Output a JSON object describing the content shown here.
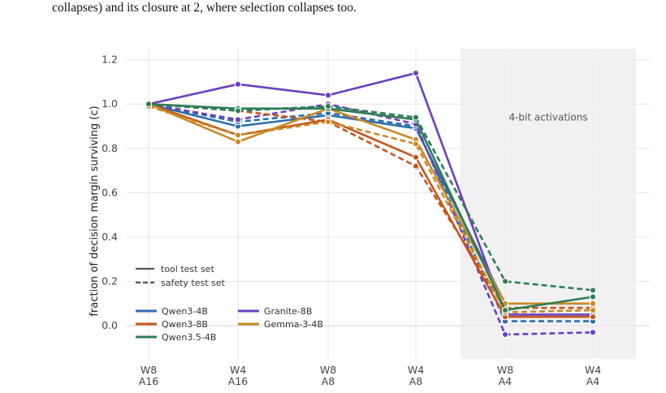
{
  "caption": "collapses) and its closure at 2, where selection collapses too.",
  "chart_data": {
    "type": "line",
    "categories": [
      [
        "W8",
        "A16"
      ],
      [
        "W4",
        "A16"
      ],
      [
        "W8",
        "A8"
      ],
      [
        "W4",
        "A8"
      ],
      [
        "W8",
        "A4"
      ],
      [
        "W4",
        "A4"
      ]
    ],
    "ylabel": "fraction of decision margin surviving (c)",
    "xlabel": "",
    "ylim": [
      -0.15,
      1.25
    ],
    "yticks": [
      0.0,
      0.2,
      0.4,
      0.6,
      0.8,
      1.0,
      1.2
    ],
    "ytick_labels": [
      "0.0",
      "0.2",
      "0.4",
      "0.6",
      "0.8",
      "1.0",
      "1.2"
    ],
    "grid": true,
    "shaded_region": {
      "from_category": 4,
      "to_category": 5,
      "label": "4-bit activations"
    },
    "linestyle_legend": [
      {
        "label": "tool test set",
        "style": "solid"
      },
      {
        "label": "safety test set",
        "style": "dashed"
      }
    ],
    "legend": [
      {
        "name": "Qwen3-4B",
        "color": "#2c6fad"
      },
      {
        "name": "Granite-8B",
        "color": "#6b3fc2"
      },
      {
        "name": "Qwen3-8B",
        "color": "#c4551f"
      },
      {
        "name": "Gemma-3-4B",
        "color": "#c98a25"
      },
      {
        "name": "Qwen3.5-4B",
        "color": "#2f7d57"
      }
    ],
    "legend_position": "lower-left",
    "series": [
      {
        "model": "Qwen3-4B",
        "test_set": "tool",
        "color": "#2c6fad",
        "dashed": false,
        "values": [
          1.0,
          0.9,
          0.95,
          0.89,
          0.1,
          0.1
        ]
      },
      {
        "model": "Qwen3-4B",
        "test_set": "safety",
        "color": "#2c6fad",
        "dashed": true,
        "values": [
          1.0,
          0.92,
          0.96,
          0.9,
          0.02,
          0.02
        ]
      },
      {
        "model": "Granite-8B",
        "test_set": "tool",
        "color": "#6b3fc2",
        "dashed": false,
        "values": [
          1.0,
          1.09,
          1.04,
          1.14,
          0.05,
          0.05
        ]
      },
      {
        "model": "Granite-8B",
        "test_set": "safety",
        "color": "#6b3fc2",
        "dashed": true,
        "values": [
          1.0,
          0.93,
          1.0,
          0.91,
          -0.04,
          -0.03
        ]
      },
      {
        "model": "Qwen3-8B",
        "test_set": "tool",
        "color": "#c4551f",
        "dashed": false,
        "values": [
          1.0,
          0.86,
          0.93,
          0.76,
          0.04,
          0.04
        ]
      },
      {
        "model": "Qwen3-8B",
        "test_set": "safety",
        "color": "#c4551f",
        "dashed": true,
        "values": [
          1.0,
          0.97,
          0.92,
          0.72,
          0.08,
          0.08
        ]
      },
      {
        "model": "Gemma-3-4B",
        "test_set": "tool",
        "color": "#c98a25",
        "dashed": false,
        "values": [
          1.0,
          0.83,
          0.98,
          0.84,
          0.1,
          0.1
        ]
      },
      {
        "model": "Gemma-3-4B",
        "test_set": "safety",
        "color": "#c98a25",
        "dashed": true,
        "values": [
          0.99,
          0.86,
          0.92,
          0.82,
          0.06,
          0.07
        ]
      },
      {
        "model": "Qwen3.5-4B",
        "test_set": "tool",
        "color": "#2f7d57",
        "dashed": false,
        "values": [
          1.0,
          0.98,
          0.98,
          0.93,
          0.07,
          0.13
        ]
      },
      {
        "model": "Qwen3.5-4B",
        "test_set": "safety",
        "color": "#2f7d57",
        "dashed": true,
        "values": [
          1.0,
          0.97,
          0.99,
          0.94,
          0.2,
          0.16
        ]
      }
    ]
  }
}
